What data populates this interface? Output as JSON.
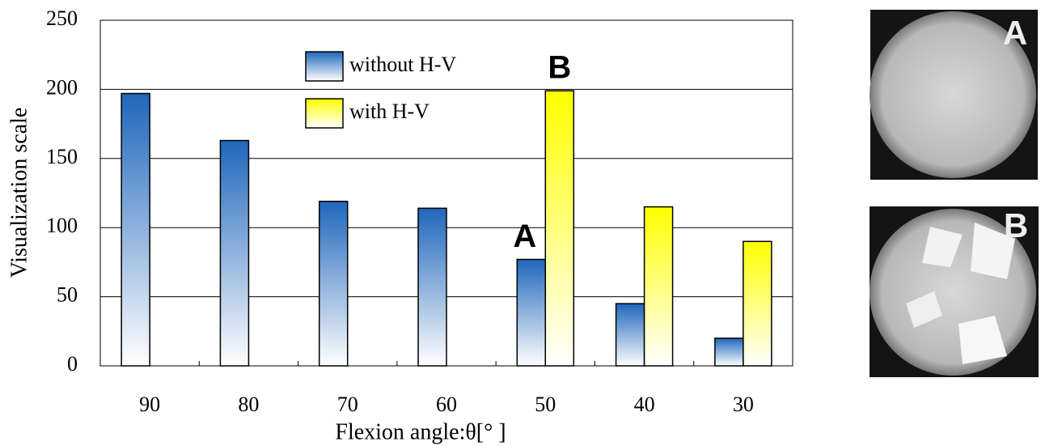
{
  "chart_data": {
    "type": "bar",
    "xlabel": "Flexion angle:θ[°  ]",
    "ylabel": "Visualization scale",
    "categories": [
      "90",
      "80",
      "70",
      "60",
      "50",
      "40",
      "30"
    ],
    "series": [
      {
        "name": "without H-V",
        "color": "#1f66bb",
        "values": [
          197,
          163,
          119,
          114,
          77,
          45,
          20
        ]
      },
      {
        "name": "with H-V",
        "color": "#ffff00",
        "values": [
          null,
          null,
          null,
          null,
          199,
          115,
          90
        ]
      }
    ],
    "ylim": [
      0,
      250
    ],
    "yticks": [
      0,
      50,
      100,
      150,
      200,
      250
    ],
    "grid": true,
    "annotations": [
      "A",
      "B"
    ]
  },
  "image_labels": [
    "A",
    "B"
  ]
}
